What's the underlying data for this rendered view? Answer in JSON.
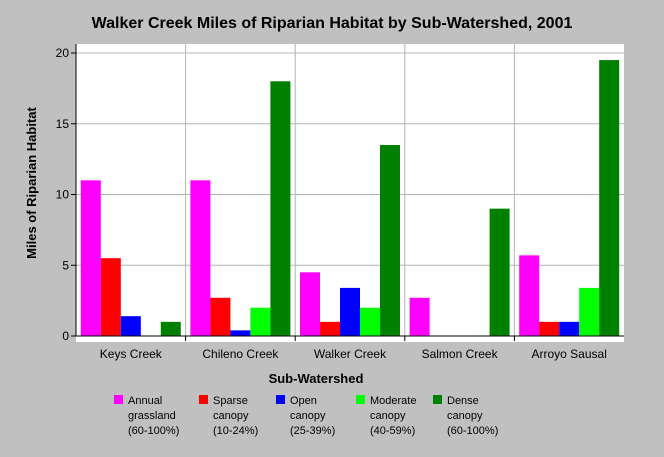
{
  "chart_data": {
    "type": "bar",
    "title": "Walker Creek Miles of Riparian Habitat by Sub-Watershed, 2001",
    "xlabel": "Sub-Watershed",
    "ylabel": "Miles of Riparian Habitat",
    "ylim": [
      0,
      20
    ],
    "yticks": [
      0,
      5,
      10,
      15,
      20
    ],
    "grid": true,
    "legend_position": "bottom",
    "categories": [
      "Keys Creek",
      "Chileno Creek",
      "Walker Creek",
      "Salmon Creek",
      "Arroyo Sausal"
    ],
    "series": [
      {
        "name": "Annual grassland (60-100%)",
        "legend_lines": [
          "Annual",
          "grassland",
          "(60-100%)"
        ],
        "color": "#ff00ff",
        "values": [
          11,
          11,
          4.5,
          2.7,
          5.7
        ]
      },
      {
        "name": "Sparse canopy (10-24%)",
        "legend_lines": [
          "Sparse",
          "canopy",
          "(10-24%)"
        ],
        "color": "#ff0000",
        "values": [
          5.5,
          2.7,
          1.0,
          0,
          1.0
        ]
      },
      {
        "name": "Open canopy (25-39%)",
        "legend_lines": [
          "Open",
          "canopy",
          "(25-39%)"
        ],
        "color": "#0000ff",
        "values": [
          1.4,
          0.4,
          3.4,
          0,
          1.0
        ]
      },
      {
        "name": "Moderate canopy (40-59%)",
        "legend_lines": [
          "Moderate",
          "canopy",
          "(40-59%)"
        ],
        "color": "#00ff00",
        "values": [
          0,
          2.0,
          2.0,
          0,
          3.4
        ]
      },
      {
        "name": "Dense canopy (60-100%)",
        "legend_lines": [
          "Dense",
          "canopy",
          "(60-100%)"
        ],
        "color": "#008000",
        "values": [
          1.0,
          18.0,
          13.5,
          9.0,
          19.5
        ]
      }
    ]
  }
}
